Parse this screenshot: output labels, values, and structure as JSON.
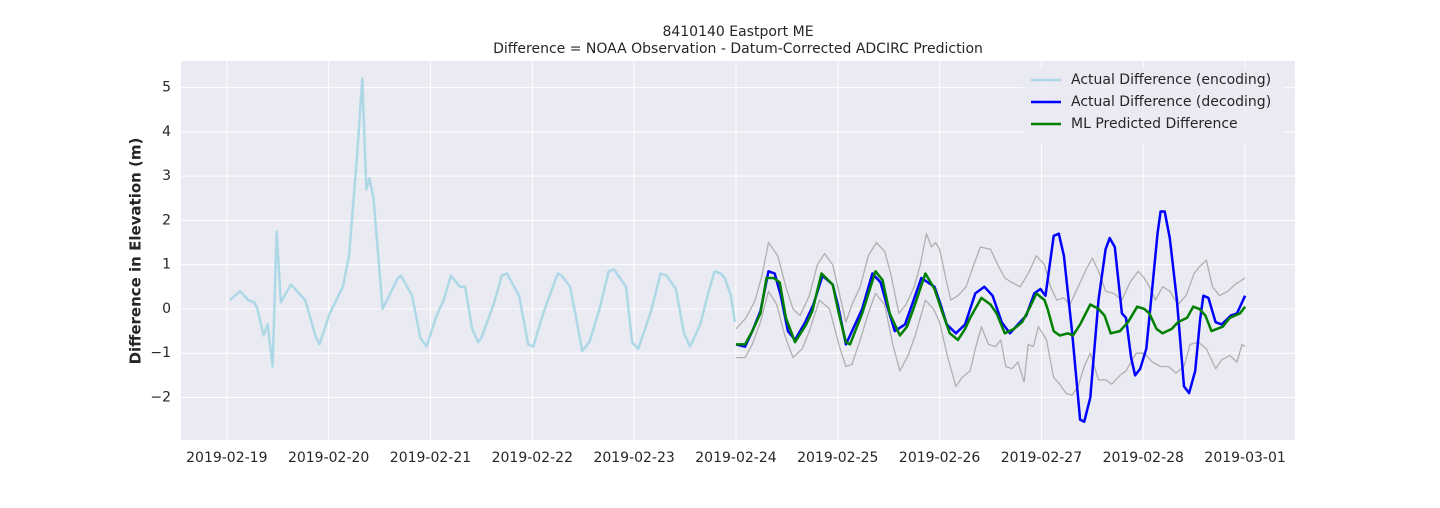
{
  "chart_data": {
    "type": "line",
    "title": "8410140 Eastport ME",
    "subtitle": "Difference = NOAA Observation - Datum-Corrected ADCIRC Prediction",
    "y_label": "Difference in Elevation (m)",
    "xlim": [
      -0.45,
      10.49
    ],
    "ylim": [
      -2.96,
      5.6
    ],
    "xticks": [
      {
        "value": 0,
        "label": "2019-02-19"
      },
      {
        "value": 1,
        "label": "2019-02-20"
      },
      {
        "value": 2,
        "label": "2019-02-21"
      },
      {
        "value": 3,
        "label": "2019-02-22"
      },
      {
        "value": 4,
        "label": "2019-02-23"
      },
      {
        "value": 5,
        "label": "2019-02-24"
      },
      {
        "value": 6,
        "label": "2019-02-25"
      },
      {
        "value": 7,
        "label": "2019-02-26"
      },
      {
        "value": 8,
        "label": "2019-02-27"
      },
      {
        "value": 9,
        "label": "2019-02-28"
      },
      {
        "value": 10,
        "label": "2019-03-01"
      }
    ],
    "yticks": [
      {
        "value": -2,
        "label": "−2"
      },
      {
        "value": -1,
        "label": "−1"
      },
      0,
      1,
      2,
      3,
      4,
      5
    ],
    "grid": true,
    "legend": "upper right",
    "series": [
      {
        "color": "#b0b0b0",
        "x": [
          5.0,
          5.1,
          5.19,
          5.26,
          5.32,
          5.41,
          5.49,
          5.56,
          5.63,
          5.72,
          5.8,
          5.87,
          5.95,
          6.01,
          6.08,
          6.14,
          6.22,
          6.3,
          6.38,
          6.46,
          6.52,
          6.6,
          6.67,
          6.75,
          6.81,
          6.87,
          6.92,
          6.96,
          7.0,
          7.06,
          7.11,
          7.18,
          7.26,
          7.32,
          7.4,
          7.5,
          7.57,
          7.64,
          7.71,
          7.79,
          7.87,
          7.95,
          8.03,
          8.09,
          8.15,
          8.22,
          8.28,
          8.36,
          8.44,
          8.5,
          8.57,
          8.63,
          8.71,
          8.79,
          8.87,
          8.95,
          9.01,
          9.06,
          9.12,
          9.19,
          9.26,
          9.34,
          9.42,
          9.5,
          9.55,
          9.62,
          9.68,
          9.75,
          9.83,
          9.9,
          10.0
        ],
        "values": [
          -0.45,
          -0.2,
          0.2,
          0.8,
          1.5,
          1.2,
          0.5,
          0.0,
          -0.15,
          0.3,
          1.0,
          1.25,
          1.0,
          0.4,
          -0.3,
          0.1,
          0.5,
          1.2,
          1.5,
          1.3,
          0.8,
          -0.1,
          0.1,
          0.5,
          1.0,
          1.7,
          1.4,
          1.5,
          1.35,
          0.7,
          0.2,
          0.3,
          0.5,
          0.9,
          1.4,
          1.35,
          1.0,
          0.7,
          0.6,
          0.5,
          0.8,
          1.2,
          1.0,
          0.5,
          0.2,
          0.25,
          0.1,
          0.5,
          0.9,
          1.15,
          0.8,
          0.4,
          0.35,
          0.2,
          0.6,
          0.85,
          0.7,
          0.5,
          0.2,
          0.5,
          0.4,
          0.1,
          0.3,
          0.8,
          0.95,
          1.1,
          0.5,
          0.3,
          0.4,
          0.55,
          0.7
        ]
      },
      {
        "color": "#b0b0b0",
        "x": [
          5.0,
          5.09,
          5.16,
          5.24,
          5.32,
          5.4,
          5.48,
          5.56,
          5.65,
          5.72,
          5.82,
          5.92,
          6.01,
          6.08,
          6.14,
          6.22,
          6.3,
          6.37,
          6.46,
          6.54,
          6.61,
          6.69,
          6.76,
          6.86,
          6.94,
          7.0,
          7.08,
          7.16,
          7.22,
          7.3,
          7.35,
          7.41,
          7.48,
          7.55,
          7.6,
          7.65,
          7.71,
          7.77,
          7.83,
          7.87,
          7.92,
          7.97,
          8.05,
          8.12,
          8.18,
          8.24,
          8.3,
          8.36,
          8.42,
          8.48,
          8.56,
          8.63,
          8.69,
          8.77,
          8.83,
          8.93,
          9.01,
          9.09,
          9.17,
          9.25,
          9.32,
          9.4,
          9.46,
          9.54,
          9.62,
          9.71,
          9.77,
          9.85,
          9.92,
          9.97,
          10.0
        ],
        "values": [
          -1.1,
          -1.1,
          -0.8,
          -0.3,
          0.4,
          0.1,
          -0.6,
          -1.1,
          -0.9,
          -0.5,
          0.2,
          0.0,
          -0.8,
          -1.3,
          -1.25,
          -0.7,
          -0.1,
          0.35,
          0.1,
          -0.8,
          -1.4,
          -1.05,
          -0.6,
          0.2,
          0.0,
          -0.3,
          -1.1,
          -1.75,
          -1.55,
          -1.4,
          -0.9,
          -0.4,
          -0.8,
          -0.85,
          -0.7,
          -1.3,
          -1.35,
          -1.2,
          -1.65,
          -0.8,
          -0.85,
          -0.4,
          -0.7,
          -1.55,
          -1.7,
          -1.9,
          -1.95,
          -1.75,
          -1.3,
          -1.0,
          -1.6,
          -1.6,
          -1.7,
          -1.5,
          -1.4,
          -1.0,
          -1.0,
          -1.2,
          -1.3,
          -1.3,
          -1.45,
          -1.3,
          -0.8,
          -0.75,
          -0.9,
          -1.35,
          -1.15,
          -1.05,
          -1.2,
          -0.8,
          -0.85
        ]
      },
      {
        "name": "Actual Difference (encoding)",
        "color": "#add8e6",
        "x": [
          0.03,
          0.13,
          0.21,
          0.27,
          0.3,
          0.36,
          0.4,
          0.45,
          0.49,
          0.53,
          0.63,
          0.77,
          0.87,
          0.91,
          1.01,
          1.14,
          1.2,
          1.28,
          1.33,
          1.37,
          1.4,
          1.44,
          1.53,
          1.68,
          1.71,
          1.82,
          1.9,
          1.96,
          2.06,
          2.13,
          2.2,
          2.29,
          2.34,
          2.41,
          2.47,
          2.5,
          2.62,
          2.7,
          2.75,
          2.87,
          2.96,
          3.01,
          3.1,
          3.17,
          3.25,
          3.29,
          3.37,
          3.43,
          3.49,
          3.56,
          3.66,
          3.75,
          3.8,
          3.86,
          3.92,
          3.98,
          4.04,
          4.16,
          4.26,
          4.32,
          4.41,
          4.49,
          4.55,
          4.65,
          4.72,
          4.79,
          4.85,
          4.89,
          4.95,
          4.99
        ],
        "values": [
          0.2,
          0.4,
          0.2,
          0.15,
          0.0,
          -0.6,
          -0.35,
          -1.3,
          1.75,
          0.15,
          0.55,
          0.2,
          -0.6,
          -0.8,
          -0.1,
          0.5,
          1.2,
          3.5,
          5.2,
          2.7,
          2.95,
          2.5,
          0.0,
          0.7,
          0.75,
          0.3,
          -0.65,
          -0.85,
          -0.15,
          0.2,
          0.75,
          0.5,
          0.5,
          -0.45,
          -0.75,
          -0.65,
          0.1,
          0.75,
          0.8,
          0.3,
          -0.8,
          -0.85,
          -0.15,
          0.3,
          0.8,
          0.75,
          0.5,
          -0.2,
          -0.95,
          -0.75,
          0.0,
          0.85,
          0.9,
          0.7,
          0.5,
          -0.75,
          -0.9,
          -0.1,
          0.8,
          0.75,
          0.45,
          -0.55,
          -0.85,
          -0.35,
          0.3,
          0.85,
          0.8,
          0.7,
          0.3,
          -0.3
        ]
      },
      {
        "name": "Actual Difference (decoding)",
        "color": "#0000ff",
        "x": [
          5.0,
          5.09,
          5.16,
          5.24,
          5.32,
          5.38,
          5.44,
          5.51,
          5.58,
          5.68,
          5.76,
          5.85,
          5.95,
          6.0,
          6.08,
          6.14,
          6.24,
          6.34,
          6.42,
          6.48,
          6.56,
          6.66,
          6.73,
          6.82,
          6.95,
          7.01,
          7.07,
          7.16,
          7.25,
          7.35,
          7.44,
          7.52,
          7.61,
          7.69,
          7.77,
          7.85,
          7.93,
          7.99,
          8.04,
          8.12,
          8.17,
          8.22,
          8.3,
          8.38,
          8.42,
          8.48,
          8.56,
          8.63,
          8.67,
          8.72,
          8.79,
          8.83,
          8.88,
          8.92,
          8.97,
          9.03,
          9.09,
          9.14,
          9.17,
          9.21,
          9.26,
          9.33,
          9.4,
          9.45,
          9.51,
          9.56,
          9.59,
          9.64,
          9.71,
          9.77,
          9.86,
          9.92,
          10.0
        ],
        "values": [
          -0.8,
          -0.85,
          -0.5,
          -0.05,
          0.85,
          0.8,
          0.3,
          -0.5,
          -0.7,
          -0.3,
          0.1,
          0.75,
          0.55,
          0.1,
          -0.8,
          -0.5,
          0.0,
          0.8,
          0.6,
          0.1,
          -0.5,
          -0.35,
          0.1,
          0.7,
          0.5,
          0.1,
          -0.35,
          -0.55,
          -0.35,
          0.35,
          0.5,
          0.3,
          -0.3,
          -0.55,
          -0.35,
          -0.15,
          0.35,
          0.45,
          0.3,
          1.65,
          1.7,
          1.2,
          -0.5,
          -2.5,
          -2.55,
          -2.0,
          0.2,
          1.35,
          1.6,
          1.4,
          -0.1,
          -0.2,
          -1.1,
          -1.5,
          -1.35,
          -0.9,
          0.5,
          1.7,
          2.2,
          2.2,
          1.6,
          0.2,
          -1.75,
          -1.9,
          -1.4,
          -0.2,
          0.3,
          0.25,
          -0.3,
          -0.35,
          -0.15,
          -0.1,
          0.3
        ]
      },
      {
        "name": "ML Predicted Difference",
        "color": "#008000",
        "x": [
          5.0,
          5.09,
          5.16,
          5.24,
          5.3,
          5.37,
          5.43,
          5.49,
          5.58,
          5.69,
          5.75,
          5.84,
          5.95,
          6.01,
          6.08,
          6.12,
          6.24,
          6.37,
          6.44,
          6.51,
          6.61,
          6.68,
          6.75,
          6.86,
          6.95,
          7.03,
          7.1,
          7.18,
          7.25,
          7.3,
          7.41,
          7.5,
          7.56,
          7.64,
          7.73,
          7.81,
          7.89,
          7.95,
          8.03,
          8.06,
          8.12,
          8.18,
          8.26,
          8.31,
          8.38,
          8.48,
          8.56,
          8.62,
          8.68,
          8.77,
          8.85,
          8.94,
          9.01,
          9.06,
          9.13,
          9.19,
          9.28,
          9.34,
          9.43,
          9.49,
          9.55,
          9.61,
          9.67,
          9.78,
          9.85,
          9.95,
          10.0
        ],
        "values": [
          -0.8,
          -0.8,
          -0.5,
          -0.1,
          0.7,
          0.7,
          0.6,
          -0.2,
          -0.75,
          -0.35,
          -0.05,
          0.8,
          0.55,
          -0.1,
          -0.75,
          -0.8,
          -0.1,
          0.85,
          0.65,
          -0.1,
          -0.6,
          -0.4,
          0.05,
          0.8,
          0.45,
          -0.1,
          -0.55,
          -0.7,
          -0.45,
          -0.2,
          0.25,
          0.1,
          -0.1,
          -0.55,
          -0.45,
          -0.3,
          0.05,
          0.35,
          0.2,
          0.0,
          -0.5,
          -0.6,
          -0.55,
          -0.6,
          -0.35,
          0.1,
          0.0,
          -0.15,
          -0.55,
          -0.5,
          -0.3,
          0.05,
          0.0,
          -0.1,
          -0.45,
          -0.55,
          -0.45,
          -0.3,
          -0.2,
          0.05,
          0.0,
          -0.15,
          -0.5,
          -0.4,
          -0.2,
          -0.1,
          0.05
        ]
      }
    ]
  }
}
